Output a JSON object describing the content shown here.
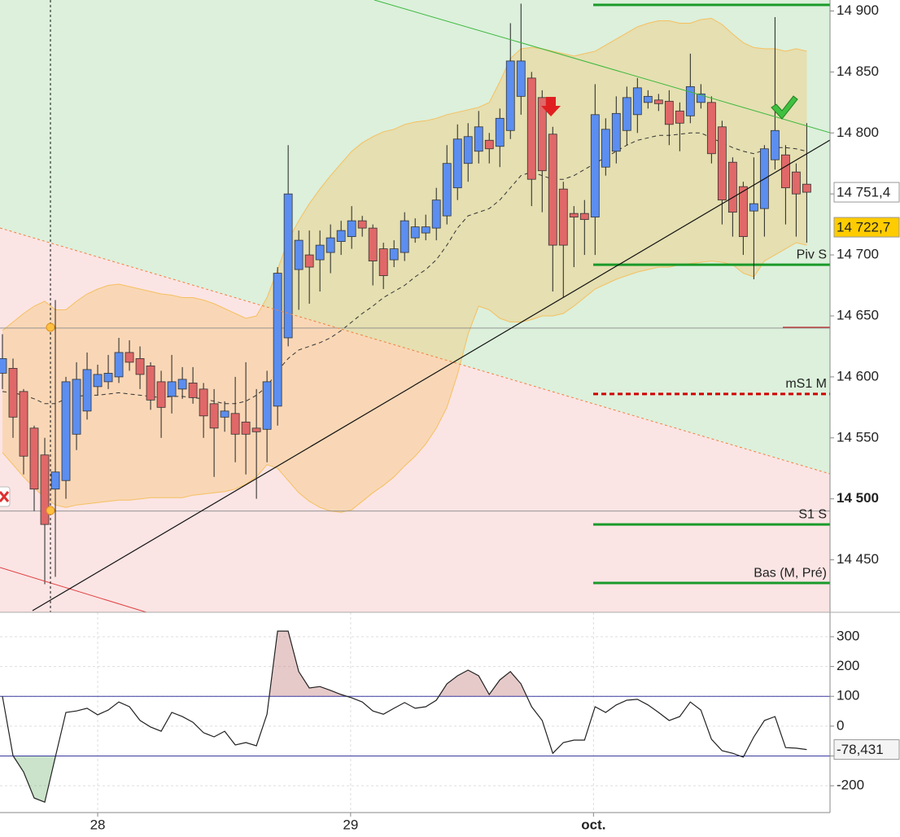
{
  "chart_data": [
    {
      "type": "candlestick",
      "x": [
        0,
        1,
        2,
        3,
        4,
        5,
        6,
        7,
        8,
        9,
        10,
        11,
        12,
        13,
        14,
        15,
        16,
        17,
        18,
        19,
        20,
        21,
        22,
        23,
        24,
        25,
        26,
        27,
        28,
        29,
        30,
        31,
        32,
        33,
        34,
        35,
        36,
        37,
        38,
        39,
        40,
        41,
        42,
        43,
        44,
        45,
        46,
        47,
        48,
        49,
        50,
        51,
        52,
        53,
        54,
        55,
        56,
        57,
        58,
        59,
        60,
        61,
        62,
        63,
        64,
        65,
        66,
        67,
        68,
        69,
        70,
        71,
        72,
        73,
        74,
        75,
        76
      ],
      "open": [
        14603,
        14607,
        14588,
        14558,
        14536,
        14508,
        14515,
        14553,
        14572,
        14592,
        14596,
        14600,
        14620,
        14615,
        14609,
        14596,
        14584,
        14590,
        14595,
        14590,
        14578,
        14567,
        14570,
        14563,
        14558,
        14557,
        14576,
        14632,
        14688,
        14700,
        14696,
        14702,
        14711,
        14715,
        14728,
        14722,
        14705,
        14696,
        14702,
        14714,
        14718,
        14722,
        14732,
        14755,
        14775,
        14785,
        14794,
        14789,
        14802,
        14830,
        14845,
        14829,
        14799,
        14754,
        14734,
        14734,
        14731,
        14772,
        14785,
        14802,
        14815,
        14825,
        14827,
        14826,
        14818,
        14814,
        14825,
        14825,
        14805,
        14776,
        14756,
        14736,
        14738,
        14778,
        14782,
        14768,
        14758
      ],
      "high": [
        14635,
        14615,
        14590,
        14560,
        14550,
        14663,
        14600,
        14612,
        14620,
        14610,
        14618,
        14632,
        14630,
        14625,
        14612,
        14605,
        14618,
        14608,
        14608,
        14595,
        14590,
        14580,
        14600,
        14612,
        14590,
        14605,
        14690,
        14790,
        14720,
        14720,
        14720,
        14725,
        14728,
        14740,
        14732,
        14725,
        14710,
        14712,
        14735,
        14730,
        14733,
        14755,
        14790,
        14807,
        14808,
        14818,
        14800,
        14820,
        14890,
        14906,
        14850,
        14835,
        14805,
        14760,
        14740,
        14745,
        14840,
        14812,
        14830,
        14838,
        14845,
        14835,
        14832,
        14835,
        14825,
        14865,
        14840,
        14830,
        14810,
        14780,
        14760,
        14780,
        14790,
        14895,
        14790,
        14775,
        14808
      ],
      "low": [
        14590,
        14550,
        14520,
        14490,
        14430,
        14436,
        14500,
        14540,
        14565,
        14585,
        14590,
        14595,
        14605,
        14590,
        14573,
        14550,
        14570,
        14582,
        14578,
        14550,
        14518,
        14555,
        14530,
        14520,
        14500,
        14530,
        14560,
        14625,
        14655,
        14660,
        14670,
        14685,
        14700,
        14705,
        14715,
        14675,
        14672,
        14690,
        14695,
        14710,
        14712,
        14712,
        14725,
        14745,
        14760,
        14775,
        14775,
        14772,
        14795,
        14815,
        14740,
        14735,
        14670,
        14665,
        14690,
        14700,
        14700,
        14765,
        14775,
        14790,
        14800,
        14820,
        14818,
        14790,
        14785,
        14808,
        14820,
        14775,
        14725,
        14715,
        14700,
        14680,
        14715,
        14770,
        14725,
        14715,
        14710
      ],
      "close": [
        14615,
        14567,
        14535,
        14508,
        14479,
        14522,
        14596,
        14598,
        14606,
        14602,
        14603,
        14620,
        14612,
        14602,
        14581,
        14575,
        14596,
        14598,
        14583,
        14568,
        14558,
        14572,
        14553,
        14553,
        14555,
        14596,
        14685,
        14750,
        14712,
        14690,
        14708,
        14714,
        14720,
        14728,
        14722,
        14695,
        14683,
        14705,
        14728,
        14723,
        14723,
        14745,
        14775,
        14795,
        14797,
        14805,
        14787,
        14812,
        14859,
        14859,
        14762,
        14769,
        14708,
        14708,
        14731,
        14729,
        14815,
        14803,
        14816,
        14829,
        14837,
        14830,
        14824,
        14807,
        14808,
        14838,
        14832,
        14783,
        14745,
        14735,
        14715,
        14742,
        14787,
        14802,
        14755,
        14750,
        14751.4
      ],
      "bb_upper": [
        14638,
        14645,
        14652,
        14658,
        14662,
        14655,
        14655,
        14662,
        14668,
        14672,
        14675,
        14676,
        14674,
        14672,
        14670,
        14668,
        14667,
        14665,
        14665,
        14663,
        14660,
        14656,
        14652,
        14648,
        14650,
        14665,
        14688,
        14712,
        14728,
        14742,
        14754,
        14765,
        14775,
        14785,
        14792,
        14797,
        14801,
        14803,
        14807,
        14809,
        14810,
        14812,
        14815,
        14817,
        14819,
        14821,
        14825,
        14842,
        14861,
        14869,
        14870,
        14869,
        14867,
        14865,
        14863,
        14865,
        14867,
        14872,
        14877,
        14882,
        14887,
        14890,
        14892,
        14892,
        14890,
        14890,
        14893,
        14894,
        14889,
        14881,
        14874,
        14870,
        14869,
        14869,
        14867,
        14869,
        14867
      ],
      "bb_middle": [
        14588,
        14587,
        14585,
        14582,
        14578,
        14578,
        14582,
        14584,
        14585,
        14585,
        14586,
        14587,
        14586,
        14585,
        14584,
        14583,
        14584,
        14584,
        14583,
        14582,
        14580,
        14578,
        14578,
        14580,
        14585,
        14592,
        14605,
        14615,
        14622,
        14625,
        14628,
        14632,
        14638,
        14645,
        14652,
        14658,
        14665,
        14670,
        14675,
        14682,
        14688,
        14696,
        14708,
        14722,
        14732,
        14735,
        14738,
        14745,
        14755,
        14765,
        14768,
        14765,
        14762,
        14762,
        14765,
        14770,
        14775,
        14780,
        14785,
        14790,
        14794,
        14796,
        14798,
        14798,
        14799,
        14800,
        14800,
        14796,
        14792,
        14788,
        14785,
        14783,
        14786,
        14788,
        14788,
        14787,
        14785
      ],
      "bb_lower": [
        14538,
        14528,
        14518,
        14509,
        14501,
        14495,
        14493,
        14495,
        14496,
        14497,
        14498,
        14499,
        14499,
        14500,
        14501,
        14501,
        14501,
        14501,
        14503,
        14504,
        14505,
        14506,
        14508,
        14512,
        14518,
        14528,
        14525,
        14515,
        14505,
        14498,
        14493,
        14490,
        14489,
        14491,
        14498,
        14505,
        14511,
        14518,
        14527,
        14535,
        14545,
        14558,
        14575,
        14602,
        14635,
        14658,
        14655,
        14648,
        14645,
        14645,
        14647,
        14650,
        14650,
        14652,
        14658,
        14665,
        14672,
        14676,
        14680,
        14683,
        14686,
        14688,
        14690,
        14690,
        14692,
        14693,
        14694,
        14695,
        14694,
        14692,
        14685,
        14682,
        14695,
        14700,
        14705,
        14710,
        14708
      ],
      "up_color": "#5b8ef0",
      "down_color": "#e06868",
      "band_color": "#f5c060",
      "xlim": [
        -0.23,
        78.2
      ],
      "ylim": [
        14407,
        14909
      ],
      "yticks": [
        {
          "value": 14900,
          "label": "14 900"
        },
        {
          "value": 14850,
          "label": "14 850"
        },
        {
          "value": 14800,
          "label": "14 800"
        },
        {
          "value": 14750,
          "label": "14 750"
        },
        {
          "value": 14700,
          "label": "14 700"
        },
        {
          "value": 14650,
          "label": "14 650"
        },
        {
          "value": 14600,
          "label": "14 600"
        },
        {
          "value": 14550,
          "label": "14 550"
        },
        {
          "value": 14500,
          "label": "14 500",
          "bold": true
        },
        {
          "value": 14450,
          "label": "14 450"
        }
      ],
      "grid": false,
      "hlines": [
        14640,
        14490
      ],
      "levels": [
        {
          "value": 14905,
          "color": "#1a9a2a"
        },
        {
          "value": 14692,
          "label": "Piv S",
          "color": "#1a9a2a"
        },
        {
          "value": 14586,
          "label": "mS1 M",
          "color": "#d00000",
          "dashed": true
        },
        {
          "value": 14479,
          "label": "S1 S",
          "color": "#1a9a2a"
        },
        {
          "value": 14431,
          "label": "Bas (M, Pré)",
          "color": "#1a9a2a"
        }
      ],
      "price_markers": [
        {
          "value": 14751.4,
          "label": "14 751,4",
          "color": "#ffffff"
        },
        {
          "value": 14722.7,
          "label": "14 722,7",
          "color": "#ffcc00"
        }
      ]
    },
    {
      "type": "line",
      "x": [
        0,
        1,
        2,
        3,
        4,
        5,
        6,
        7,
        8,
        9,
        10,
        11,
        12,
        13,
        14,
        15,
        16,
        17,
        18,
        19,
        20,
        21,
        22,
        23,
        24,
        25,
        26,
        27,
        28,
        29,
        30,
        31,
        32,
        33,
        34,
        35,
        36,
        37,
        38,
        39,
        40,
        41,
        42,
        43,
        44,
        45,
        46,
        47,
        48,
        49,
        50,
        51,
        52,
        53,
        54,
        55,
        56,
        57,
        58,
        59,
        60,
        61,
        62,
        63,
        64,
        65,
        66,
        67,
        68,
        69,
        70,
        71,
        72,
        73,
        74,
        75,
        76
      ],
      "values": [
        100,
        -99,
        -154,
        -241,
        -255,
        -104,
        46,
        51,
        60,
        38,
        54,
        81,
        65,
        19,
        -3,
        -17,
        46,
        32,
        13,
        -22,
        -36,
        -17,
        -63,
        -55,
        -66,
        40,
        319,
        319,
        183,
        128,
        133,
        120,
        106,
        95,
        81,
        51,
        40,
        60,
        79,
        60,
        65,
        87,
        142,
        169,
        188,
        169,
        106,
        155,
        183,
        142,
        65,
        19,
        -91,
        -55,
        -47,
        -47,
        65,
        46,
        71,
        87,
        90,
        71,
        46,
        19,
        32,
        81,
        54,
        -44,
        -82,
        -91,
        -104,
        -36,
        19,
        32,
        -72,
        -74,
        -78.431
      ],
      "color": "#222222",
      "xlim": [
        -0.23,
        78.2
      ],
      "ylim": [
        -290,
        382
      ],
      "yticks": [
        300,
        200,
        100,
        0,
        -100,
        -200
      ],
      "xticks": [
        {
          "value": 9,
          "label": "28"
        },
        {
          "value": 32.9,
          "label": "29"
        },
        {
          "value": 55.85,
          "label": "oct.",
          "bold": true
        }
      ],
      "grid": true,
      "levels": [
        100,
        -100
      ],
      "last_marker": {
        "value": -78.431,
        "label": "-78,431"
      }
    }
  ]
}
